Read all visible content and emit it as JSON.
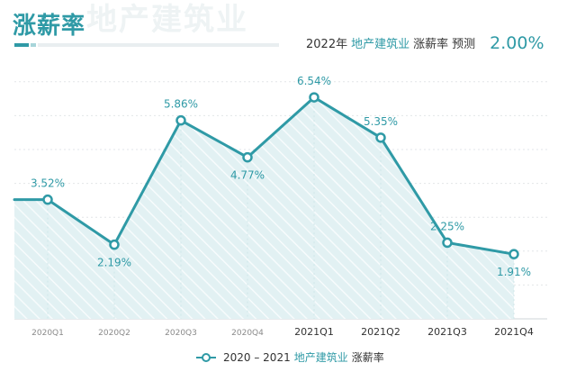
{
  "page": {
    "title": "涨薪率",
    "watermark": "地产建筑业",
    "forecast": {
      "year": "2022年",
      "industry": "地产建筑业",
      "metric": "涨薪率",
      "label": "预测",
      "value": "2.00%"
    },
    "legend": {
      "range": "2020 – 2021",
      "industry": "地产建筑业",
      "metric": "涨薪率"
    }
  },
  "colors": {
    "accent": "#2f9aa6",
    "fill": "#dff0f2",
    "grid": "#e2e6e8",
    "label": "#2f9aa6"
  },
  "chart_data": {
    "type": "area",
    "title": "涨薪率",
    "categories": [
      "2020Q1",
      "2020Q2",
      "2020Q3",
      "2020Q4",
      "2021Q1",
      "2021Q2",
      "2021Q3",
      "2021Q4"
    ],
    "series": [
      {
        "name": "2020 – 2021 地产建筑业 涨薪率",
        "values": [
          3.52,
          2.19,
          5.86,
          4.77,
          6.54,
          5.35,
          2.25,
          1.91
        ],
        "labels": [
          "3.52%",
          "2.19%",
          "5.86%",
          "4.77%",
          "6.54%",
          "5.35%",
          "2.25%",
          "1.91%"
        ]
      }
    ],
    "ylim": [
      0,
      7.5
    ],
    "grid": true,
    "legend_position": "bottom-center",
    "xlabel": "",
    "ylabel": ""
  }
}
